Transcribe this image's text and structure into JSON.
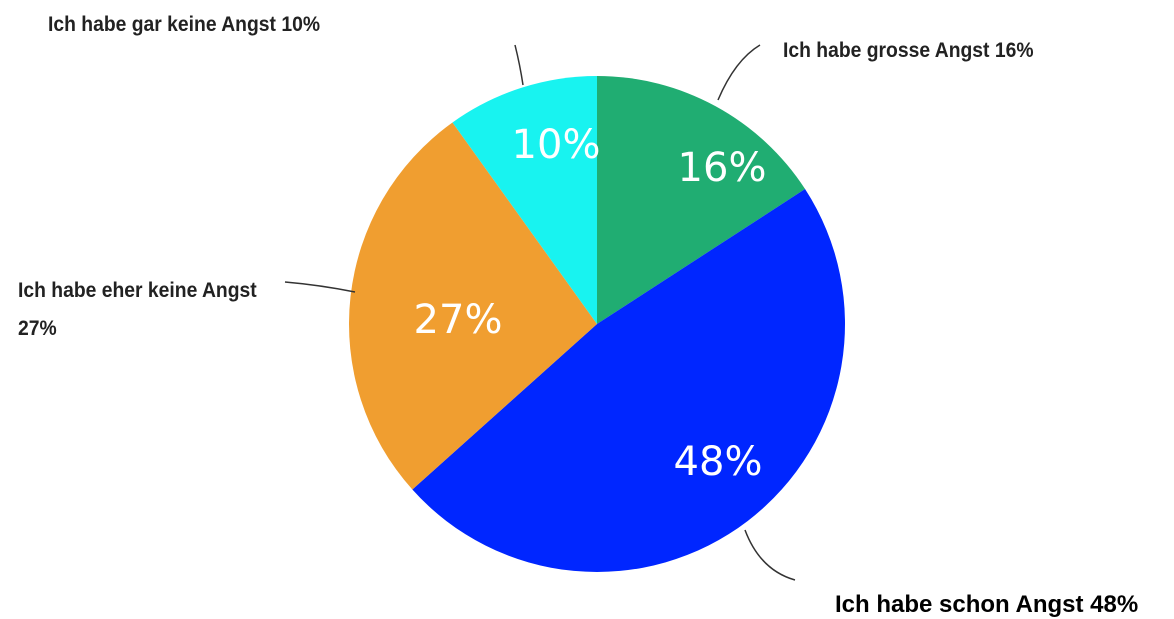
{
  "chart_data": {
    "type": "pie",
    "categories": [
      "Ich habe grosse Angst 16%",
      "Ich habe schon Angst 48%",
      "Ich habe eher keine Angst 27%",
      "Ich habe gar keine Angst 10%"
    ],
    "values": [
      16,
      48,
      27,
      10
    ],
    "value_labels": [
      "16%",
      "48%",
      "27%",
      "10%"
    ],
    "colors": [
      "#20ad72",
      "#0026ff",
      "#f09e30",
      "#18f3f0"
    ]
  }
}
